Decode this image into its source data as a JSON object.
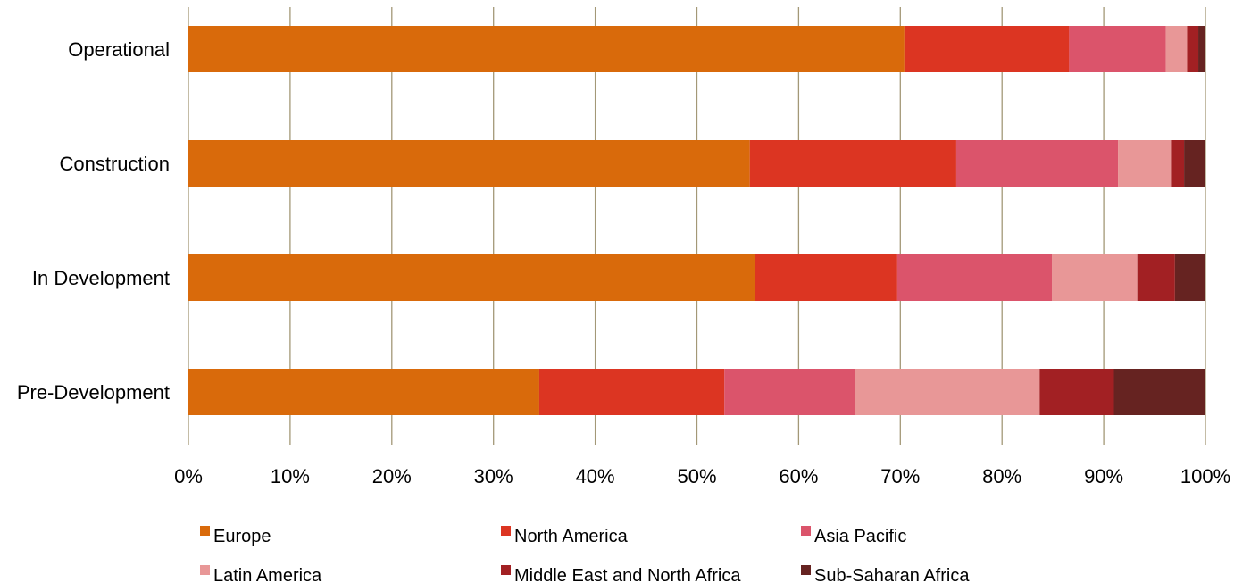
{
  "chart_data": {
    "type": "bar",
    "orientation": "horizontal",
    "stacked": "percent",
    "categories": [
      "Operational",
      "Construction",
      "In Development",
      "Pre-Development"
    ],
    "xlim": [
      0,
      100
    ],
    "xticks": [
      0,
      10,
      20,
      30,
      40,
      50,
      60,
      70,
      80,
      90,
      100
    ],
    "xtick_labels": [
      "0%",
      "10%",
      "20%",
      "30%",
      "40%",
      "50%",
      "60%",
      "70%",
      "80%",
      "90%",
      "100%"
    ],
    "grid": "vertical",
    "legend_position": "bottom",
    "series": [
      {
        "name": "Europe",
        "color": "#D96A0B",
        "values": [
          70.4,
          55.2,
          55.7,
          34.5
        ]
      },
      {
        "name": "North America",
        "color": "#DC3522",
        "values": [
          16.2,
          20.3,
          14.0,
          18.2
        ]
      },
      {
        "name": "Asia Pacific",
        "color": "#DB546B",
        "values": [
          9.5,
          15.9,
          15.2,
          12.8
        ]
      },
      {
        "name": "Latin America",
        "color": "#E89797",
        "values": [
          2.1,
          5.3,
          8.4,
          18.2
        ]
      },
      {
        "name": "Middle East and North Africa",
        "color": "#A22023",
        "values": [
          1.1,
          1.2,
          3.7,
          7.3
        ]
      },
      {
        "name": "Sub-Saharan Africa",
        "color": "#662321",
        "values": [
          0.7,
          2.1,
          3.0,
          9.0
        ]
      }
    ]
  }
}
